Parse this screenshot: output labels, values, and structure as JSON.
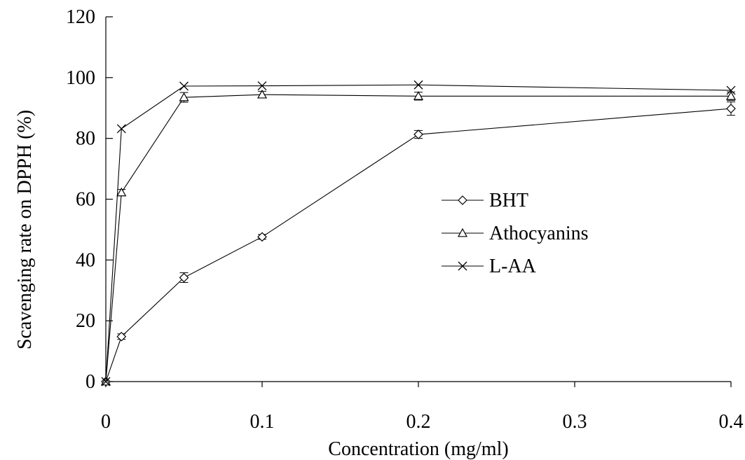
{
  "chart_data": {
    "type": "line",
    "xlabel": "Concentration (mg/ml)",
    "ylabel": "Scavenging rate on DPPH (%)",
    "xlim": [
      0,
      0.4
    ],
    "ylim": [
      0,
      120
    ],
    "xticks": [
      0,
      0.1,
      0.2,
      0.3,
      0.4
    ],
    "xtick_labels": [
      "0",
      "0.1",
      "0.2",
      "0.3",
      "0.4"
    ],
    "yticks": [
      0,
      20,
      40,
      60,
      80,
      100,
      120
    ],
    "ytick_labels": [
      "0",
      "20",
      "40",
      "60",
      "80",
      "100",
      "120"
    ],
    "grid": false,
    "legend_position": "right-center",
    "x": [
      0,
      0.01,
      0.05,
      0.1,
      0.2,
      0.4
    ],
    "series": [
      {
        "name": "BHT",
        "marker": "diamond",
        "values": [
          0,
          14.8,
          34.2,
          47.6,
          81.3,
          89.8
        ],
        "errors": [
          0,
          0.9,
          1.6,
          0.8,
          1.3,
          2.2
        ]
      },
      {
        "name": "Athocyanins",
        "marker": "triangle",
        "values": [
          0,
          62.2,
          93.5,
          94.4,
          93.9,
          93.9
        ],
        "errors": [
          0,
          1.0,
          1.6,
          1.1,
          1.3,
          1.4
        ]
      },
      {
        "name": "L-AA",
        "marker": "x",
        "values": [
          0,
          83.2,
          97.2,
          97.3,
          97.6,
          95.8
        ],
        "errors": [
          0,
          0,
          0,
          0,
          0,
          0
        ]
      }
    ]
  }
}
